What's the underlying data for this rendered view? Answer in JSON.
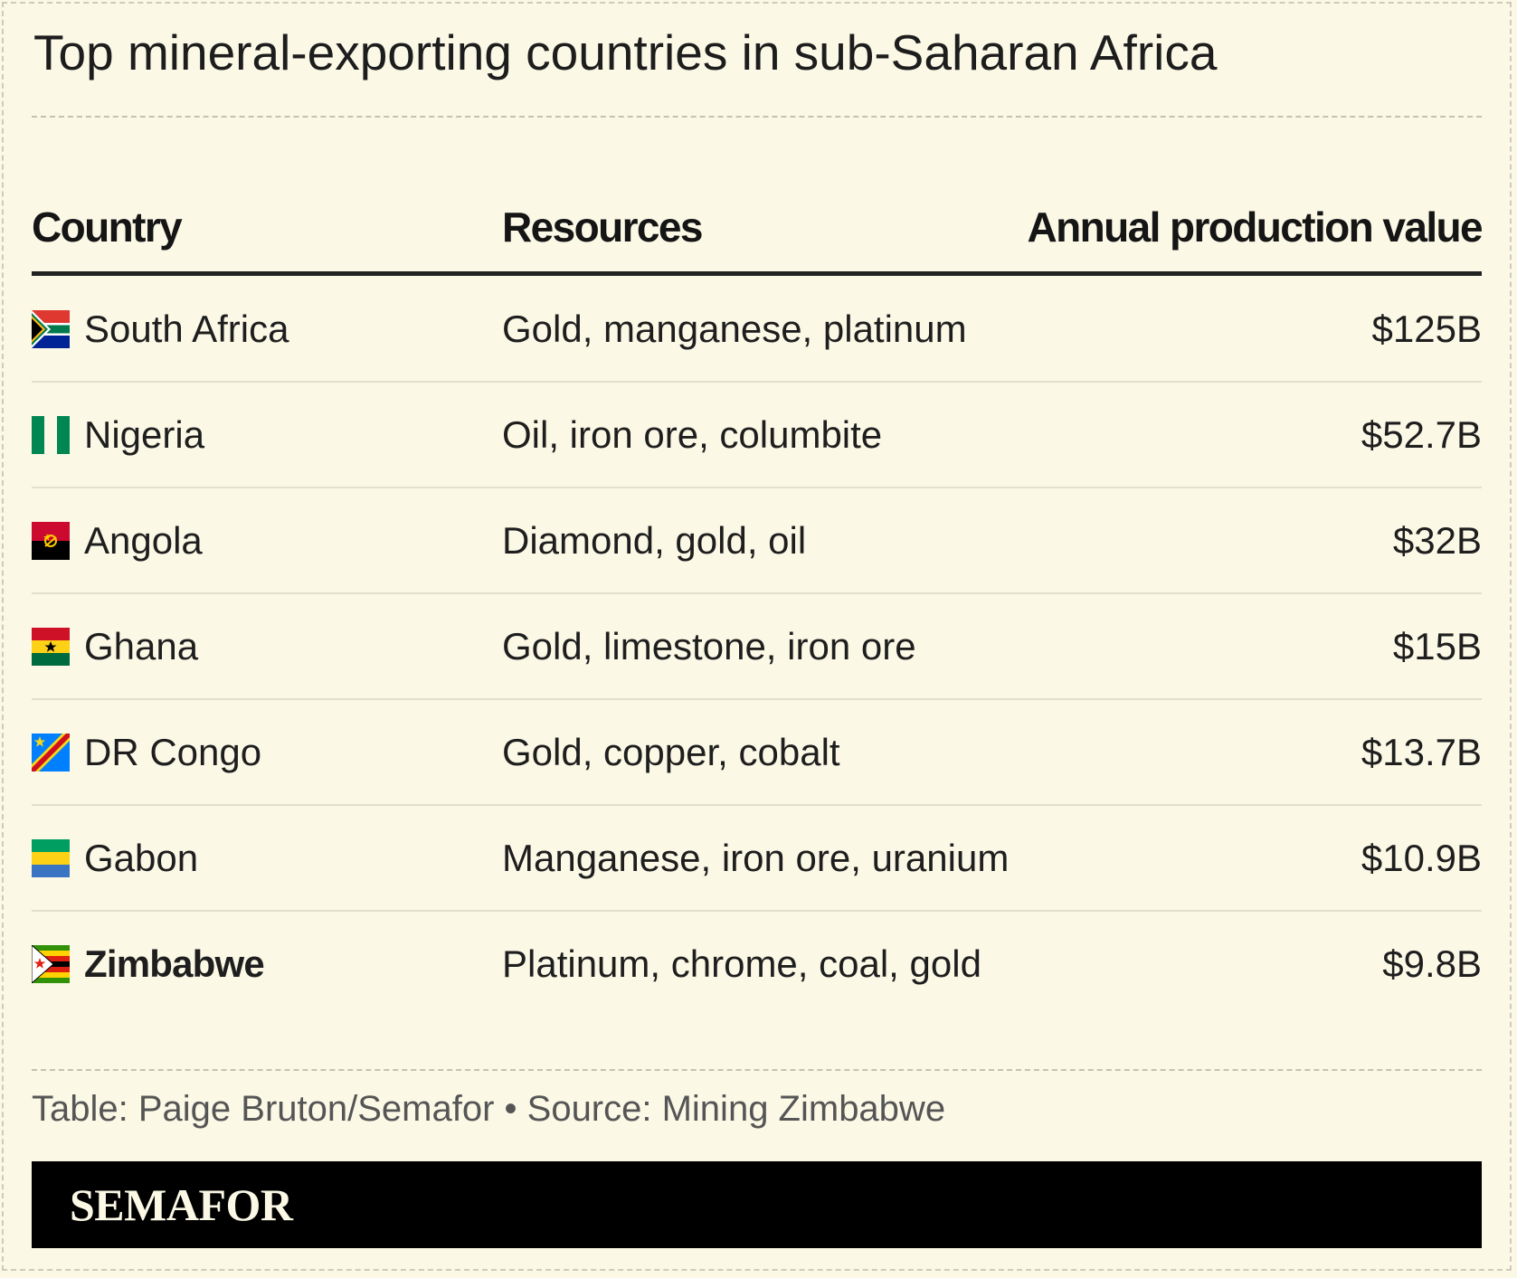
{
  "title": "Top mineral-exporting countries in sub-Saharan Africa",
  "chart_data": {
    "type": "table",
    "title": "Top mineral-exporting countries in sub-Saharan Africa",
    "columns": [
      "Country",
      "Resources",
      "Annual production value"
    ],
    "rows": [
      {
        "country": "South Africa",
        "flag": "south-africa-flag-icon",
        "resources": "Gold, manganese, platinum",
        "value": "$125B",
        "highlight": false
      },
      {
        "country": "Nigeria",
        "flag": "nigeria-flag-icon",
        "resources": "Oil, iron ore, columbite",
        "value": "$52.7B",
        "highlight": false
      },
      {
        "country": "Angola",
        "flag": "angola-flag-icon",
        "resources": "Diamond, gold, oil",
        "value": "$32B",
        "highlight": false
      },
      {
        "country": "Ghana",
        "flag": "ghana-flag-icon",
        "resources": "Gold, limestone, iron ore",
        "value": "$15B",
        "highlight": false
      },
      {
        "country": "DR Congo",
        "flag": "dr-congo-flag-icon",
        "resources": "Gold, copper, cobalt",
        "value": "$13.7B",
        "highlight": false
      },
      {
        "country": "Gabon",
        "flag": "gabon-flag-icon",
        "resources": "Manganese, iron ore, uranium",
        "value": "$10.9B",
        "highlight": false
      },
      {
        "country": "Zimbabwe",
        "flag": "zimbabwe-flag-icon",
        "resources": "Platinum, chrome, coal, gold",
        "value": "$9.8B",
        "highlight": true
      }
    ]
  },
  "footer": {
    "source": "Table: Paige Bruton/Semafor • Source: Mining Zimbabwe",
    "brand": "SEMAFOR"
  },
  "colors": {
    "background": "#fbf8e6",
    "brand_bar": "#000000",
    "brand_text": "#fbf8e6"
  }
}
